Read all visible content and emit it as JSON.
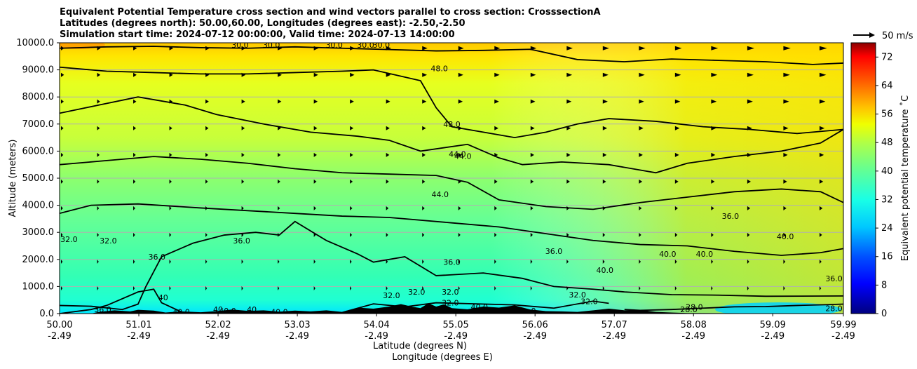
{
  "chart_data": {
    "type": "contourf",
    "title_lines": [
      "Equivalent Potential Temperature cross section and wind vectors parallel to cross section: CrosssectionA",
      "Latitudes (degrees north): 50.00,60.00, Longitudes (degrees east): -2.50,-2.50",
      "Simulation start time: 2024-07-12 00:00:00, Valid time: 2024-07-13 14:00:00"
    ],
    "xlabel_line1": "Latitude (degrees N)",
    "xlabel_line2": "Longitude (degrees E)",
    "ylabel": "Altitude (meters)",
    "x_ticks": [
      {
        "lat": 50.0,
        "lat_label": "50.00",
        "lon_label": "-2.49"
      },
      {
        "lat": 51.01,
        "lat_label": "51.01",
        "lon_label": "-2.49"
      },
      {
        "lat": 52.02,
        "lat_label": "52.02",
        "lon_label": "-2.49"
      },
      {
        "lat": 53.03,
        "lat_label": "53.03",
        "lon_label": "-2.49"
      },
      {
        "lat": 54.04,
        "lat_label": "54.04",
        "lon_label": "-2.49"
      },
      {
        "lat": 55.05,
        "lat_label": "55.05",
        "lon_label": "-2.49"
      },
      {
        "lat": 56.06,
        "lat_label": "56.06",
        "lon_label": "-2.49"
      },
      {
        "lat": 57.07,
        "lat_label": "57.07",
        "lon_label": "-2.49"
      },
      {
        "lat": 58.08,
        "lat_label": "58.08",
        "lon_label": "-2.49"
      },
      {
        "lat": 59.09,
        "lat_label": "59.09",
        "lon_label": "-2.49"
      },
      {
        "lat": 59.99,
        "lat_label": "59.99",
        "lon_label": "-2.49"
      }
    ],
    "xlim": [
      50.0,
      59.99
    ],
    "ylim": [
      0,
      10000
    ],
    "y_ticks": [
      0,
      1000,
      2000,
      3000,
      4000,
      5000,
      6000,
      7000,
      8000,
      9000,
      10000
    ],
    "y_tick_labels": [
      "0.0",
      "1000.0",
      "2000.0",
      "3000.0",
      "4000.0",
      "5000.0",
      "6000.0",
      "7000.0",
      "8000.0",
      "9000.0",
      "10000.0"
    ],
    "colorbar": {
      "label": "Equivalent potential temperature ˚C",
      "min": 0,
      "max": 76,
      "ticks": [
        0,
        8,
        16,
        24,
        32,
        40,
        48,
        56,
        64,
        72
      ],
      "tick_labels": [
        "0",
        "8",
        "16",
        "24",
        "32",
        "40",
        "48",
        "56",
        "64",
        "72"
      ]
    },
    "quiver_key_label": "50 m/s",
    "quiver_key_speed": 50,
    "contour_lines": [
      {
        "level": 28.0,
        "points": [
          [
            57.2,
            150
          ],
          [
            57.4,
            120
          ],
          [
            57.8,
            150
          ],
          [
            58.2,
            200
          ],
          [
            58.6,
            250
          ],
          [
            59.0,
            260
          ],
          [
            59.4,
            300
          ],
          [
            59.8,
            330
          ],
          [
            59.99,
            350
          ]
        ]
      },
      {
        "level": 32.0,
        "points": [
          [
            50.0,
            0
          ],
          [
            50.4,
            150
          ],
          [
            50.6,
            300
          ],
          [
            51.0,
            800
          ],
          [
            51.2,
            900
          ],
          [
            51.3,
            400
          ],
          [
            51.6,
            0
          ]
        ]
      },
      {
        "level": 32.0,
        "points": [
          [
            53.6,
            40
          ],
          [
            54.0,
            360
          ],
          [
            54.4,
            250
          ],
          [
            54.8,
            400
          ],
          [
            55.3,
            360
          ],
          [
            55.8,
            320
          ],
          [
            56.3,
            200
          ],
          [
            56.8,
            460
          ],
          [
            57.0,
            380
          ]
        ]
      },
      {
        "level": 36.0,
        "points": [
          [
            50.0,
            300
          ],
          [
            50.4,
            270
          ],
          [
            50.8,
            150
          ],
          [
            51.0,
            350
          ],
          [
            51.1,
            1000
          ],
          [
            51.3,
            2100
          ],
          [
            51.7,
            2600
          ],
          [
            52.1,
            2900
          ],
          [
            52.5,
            3000
          ],
          [
            52.8,
            2900
          ],
          [
            53.0,
            3400
          ],
          [
            53.4,
            2700
          ],
          [
            53.8,
            2200
          ],
          [
            54.0,
            1900
          ],
          [
            54.4,
            2100
          ],
          [
            54.8,
            1400
          ],
          [
            55.4,
            1500
          ],
          [
            55.9,
            1300
          ],
          [
            56.3,
            1000
          ],
          [
            56.8,
            900
          ],
          [
            57.2,
            800
          ],
          [
            57.8,
            700
          ],
          [
            58.4,
            680
          ],
          [
            59.0,
            640
          ],
          [
            59.99,
            650
          ]
        ]
      },
      {
        "level": 36.0,
        "points": [
          [
            50.0,
            3700
          ],
          [
            50.4,
            4000
          ],
          [
            51.0,
            4050
          ],
          [
            51.8,
            3900
          ],
          [
            52.4,
            3800
          ],
          [
            53.0,
            3700
          ],
          [
            53.6,
            3600
          ],
          [
            54.2,
            3550
          ],
          [
            55.0,
            3350
          ],
          [
            55.6,
            3200
          ],
          [
            56.2,
            2950
          ],
          [
            56.8,
            2700
          ],
          [
            57.4,
            2550
          ],
          [
            58.0,
            2500
          ],
          [
            58.6,
            2300
          ],
          [
            59.2,
            2150
          ],
          [
            59.7,
            2250
          ],
          [
            59.99,
            2400
          ]
        ]
      },
      {
        "level": 40.0,
        "points": [
          [
            50.0,
            5500
          ],
          [
            50.6,
            5650
          ],
          [
            51.2,
            5800
          ],
          [
            51.8,
            5700
          ],
          [
            52.4,
            5550
          ],
          [
            53.0,
            5350
          ],
          [
            53.6,
            5200
          ],
          [
            54.2,
            5150
          ],
          [
            54.8,
            5100
          ],
          [
            55.2,
            4850
          ],
          [
            55.6,
            4200
          ],
          [
            56.2,
            3950
          ],
          [
            56.8,
            3850
          ],
          [
            57.4,
            4100
          ],
          [
            58.0,
            4300
          ],
          [
            58.6,
            4500
          ],
          [
            59.2,
            4600
          ],
          [
            59.7,
            4500
          ],
          [
            59.99,
            4100
          ]
        ]
      },
      {
        "level": 44.0,
        "points": [
          [
            50.0,
            7400
          ],
          [
            50.5,
            7700
          ],
          [
            51.0,
            8000
          ],
          [
            51.6,
            7700
          ],
          [
            52.0,
            7350
          ],
          [
            52.6,
            7000
          ],
          [
            53.2,
            6700
          ],
          [
            53.8,
            6550
          ],
          [
            54.2,
            6400
          ],
          [
            54.6,
            6000
          ],
          [
            55.2,
            6250
          ],
          [
            55.6,
            5750
          ],
          [
            55.9,
            5500
          ],
          [
            56.4,
            5600
          ],
          [
            57.0,
            5500
          ],
          [
            57.6,
            5200
          ],
          [
            58.0,
            5550
          ],
          [
            58.6,
            5800
          ],
          [
            59.2,
            6000
          ],
          [
            59.7,
            6300
          ],
          [
            59.99,
            6800
          ]
        ]
      },
      {
        "level": 48.0,
        "points": [
          [
            50.0,
            9100
          ],
          [
            50.6,
            8950
          ],
          [
            51.2,
            8900
          ],
          [
            51.8,
            8850
          ],
          [
            52.4,
            8850
          ],
          [
            53.0,
            8900
          ],
          [
            53.6,
            8950
          ],
          [
            54.0,
            9000
          ],
          [
            54.6,
            8600
          ],
          [
            54.8,
            7600
          ],
          [
            55.0,
            6900
          ],
          [
            55.4,
            6700
          ],
          [
            55.8,
            6500
          ],
          [
            56.2,
            6700
          ],
          [
            56.6,
            7000
          ],
          [
            57.0,
            7200
          ],
          [
            57.6,
            7100
          ],
          [
            58.2,
            6900
          ],
          [
            58.8,
            6800
          ],
          [
            59.4,
            6650
          ],
          [
            59.99,
            6800
          ]
        ]
      },
      {
        "level": 50.0,
        "points": [
          [
            50.0,
            9800
          ],
          [
            50.6,
            9850
          ],
          [
            51.2,
            9870
          ],
          [
            51.8,
            9820
          ],
          [
            52.4,
            9800
          ],
          [
            53.0,
            9850
          ],
          [
            53.6,
            9800
          ],
          [
            54.2,
            9750
          ],
          [
            54.8,
            9700
          ],
          [
            55.4,
            9720
          ],
          [
            56.0,
            9760
          ],
          [
            56.6,
            9380
          ],
          [
            57.2,
            9300
          ],
          [
            57.8,
            9400
          ],
          [
            58.4,
            9350
          ],
          [
            59.0,
            9300
          ],
          [
            59.6,
            9200
          ],
          [
            59.99,
            9250
          ]
        ]
      }
    ],
    "contour_labels": [
      {
        "text": "30.0",
        "lat": 52.3,
        "alt": 9920
      },
      {
        "text": "30.0",
        "lat": 52.7,
        "alt": 9920
      },
      {
        "text": "30.0",
        "lat": 53.5,
        "alt": 9920
      },
      {
        "text": "30.0",
        "lat": 53.9,
        "alt": 9920
      },
      {
        "text": "30.0",
        "lat": 54.1,
        "alt": 9920
      },
      {
        "text": "48.0",
        "lat": 54.84,
        "alt": 9050
      },
      {
        "text": "48.0",
        "lat": 55.0,
        "alt": 7000
      },
      {
        "text": "44.0",
        "lat": 55.07,
        "alt": 5900
      },
      {
        "text": "44.0",
        "lat": 55.14,
        "alt": 5820
      },
      {
        "text": "44.0",
        "lat": 54.85,
        "alt": 4400
      },
      {
        "text": "36.0",
        "lat": 58.55,
        "alt": 3600
      },
      {
        "text": "40.0",
        "lat": 59.25,
        "alt": 2850
      },
      {
        "text": "32.0",
        "lat": 50.12,
        "alt": 2750
      },
      {
        "text": "32.0",
        "lat": 50.62,
        "alt": 2700
      },
      {
        "text": "36.0",
        "lat": 52.32,
        "alt": 2700
      },
      {
        "text": "36.0",
        "lat": 51.24,
        "alt": 2100
      },
      {
        "text": "36.0",
        "lat": 55.0,
        "alt": 1900
      },
      {
        "text": "36.0",
        "lat": 56.3,
        "alt": 2300
      },
      {
        "text": "40.0",
        "lat": 56.95,
        "alt": 1600
      },
      {
        "text": "40.0",
        "lat": 57.75,
        "alt": 2200
      },
      {
        "text": "40.0",
        "lat": 58.22,
        "alt": 2200
      },
      {
        "text": "36.0",
        "lat": 59.87,
        "alt": 1300
      },
      {
        "text": "32.0",
        "lat": 54.23,
        "alt": 680
      },
      {
        "text": "32.0",
        "lat": 54.55,
        "alt": 800
      },
      {
        "text": "32.0",
        "lat": 54.98,
        "alt": 800
      },
      {
        "text": "32.0",
        "lat": 54.98,
        "alt": 400
      },
      {
        "text": "40",
        "lat": 51.32,
        "alt": 600
      },
      {
        "text": "36.0",
        "lat": 50.55,
        "alt": 150
      },
      {
        "text": "40.0",
        "lat": 51.55,
        "alt": 60
      },
      {
        "text": "40",
        "lat": 52.02,
        "alt": 150
      },
      {
        "text": "40.0",
        "lat": 52.14,
        "alt": 100
      },
      {
        "text": "40",
        "lat": 52.45,
        "alt": 150
      },
      {
        "text": "40.0",
        "lat": 52.8,
        "alt": 60
      },
      {
        "text": "32.0",
        "lat": 56.6,
        "alt": 700
      },
      {
        "text": "32.0",
        "lat": 56.75,
        "alt": 450
      },
      {
        "text": "28.0",
        "lat": 58.02,
        "alt": 150
      },
      {
        "text": "28.0",
        "lat": 58.09,
        "alt": 250
      },
      {
        "text": "28.0",
        "lat": 59.87,
        "alt": 200
      },
      {
        "text": "40.0",
        "lat": 55.35,
        "alt": 250
      },
      {
        "text": "0",
        "lat": 56.04,
        "alt": 100
      }
    ],
    "terrain": [
      [
        50.0,
        0
      ],
      [
        50.4,
        0
      ],
      [
        50.5,
        60
      ],
      [
        50.7,
        120
      ],
      [
        50.9,
        80
      ],
      [
        51.0,
        140
      ],
      [
        51.2,
        110
      ],
      [
        51.35,
        40
      ],
      [
        51.55,
        80
      ],
      [
        51.8,
        50
      ],
      [
        52.0,
        90
      ],
      [
        52.2,
        150
      ],
      [
        52.4,
        100
      ],
      [
        52.6,
        120
      ],
      [
        52.8,
        70
      ],
      [
        53.0,
        110
      ],
      [
        53.2,
        80
      ],
      [
        53.4,
        120
      ],
      [
        53.6,
        60
      ],
      [
        53.8,
        220
      ],
      [
        54.0,
        180
      ],
      [
        54.2,
        260
      ],
      [
        54.35,
        350
      ],
      [
        54.5,
        250
      ],
      [
        54.6,
        200
      ],
      [
        54.7,
        380
      ],
      [
        54.8,
        260
      ],
      [
        54.9,
        340
      ],
      [
        55.0,
        200
      ],
      [
        55.2,
        160
      ],
      [
        55.4,
        260
      ],
      [
        55.6,
        220
      ],
      [
        55.8,
        300
      ],
      [
        56.0,
        150
      ],
      [
        56.2,
        90
      ],
      [
        56.4,
        80
      ],
      [
        56.6,
        60
      ],
      [
        56.8,
        120
      ],
      [
        57.0,
        180
      ],
      [
        57.2,
        120
      ],
      [
        57.4,
        140
      ],
      [
        57.6,
        60
      ],
      [
        57.8,
        40
      ],
      [
        58.0,
        20
      ],
      [
        59.99,
        0
      ]
    ]
  }
}
